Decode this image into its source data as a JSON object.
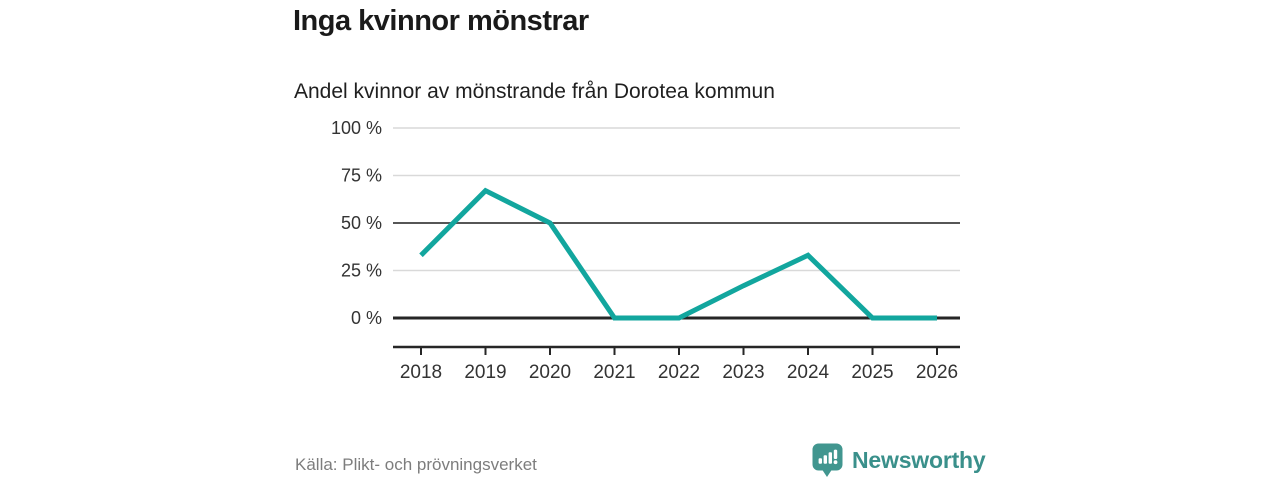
{
  "title": "Inga kvinnor mönstrar",
  "subtitle": "Andel kvinnor av mönstrande från Dorotea kommun",
  "source": "Källa: Plikt- och prövningsverket",
  "brand": {
    "name": "Newsworthy",
    "icon": "newsworthy-speech-bubble-chart-icon",
    "icon_color": "#41968f",
    "text_color": "#3a908b"
  },
  "colors": {
    "line": "#12a69e",
    "grid_light": "#d9d9d9",
    "grid_mid": "#565656",
    "axis_dark": "#262626",
    "axis_text": "#333333",
    "title_text": "#1a1a1a",
    "source_text": "#7d7d7d"
  },
  "chart_data": {
    "type": "line",
    "title": "Inga kvinnor mönstrar",
    "subtitle": "Andel kvinnor av mönstrande från Dorotea kommun",
    "x": [
      "2018",
      "2019",
      "2020",
      "2021",
      "2022",
      "2023",
      "2024",
      "2025",
      "2026"
    ],
    "values": [
      33,
      67,
      50,
      0,
      0,
      17,
      33,
      0,
      0
    ],
    "unit": "%",
    "xlabel": "",
    "ylabel": "",
    "ylim": [
      0,
      100
    ],
    "yticks": [
      0,
      25,
      50,
      75,
      100
    ],
    "ytick_labels": [
      "0 %",
      "25 %",
      "50 %",
      "75 %",
      "100 %"
    ],
    "grid": "horizontal",
    "emphasized_gridlines": [
      0,
      50
    ],
    "line_color": "#12a69e",
    "legend": "none",
    "source": "Källa: Plikt- och prövningsverket"
  }
}
